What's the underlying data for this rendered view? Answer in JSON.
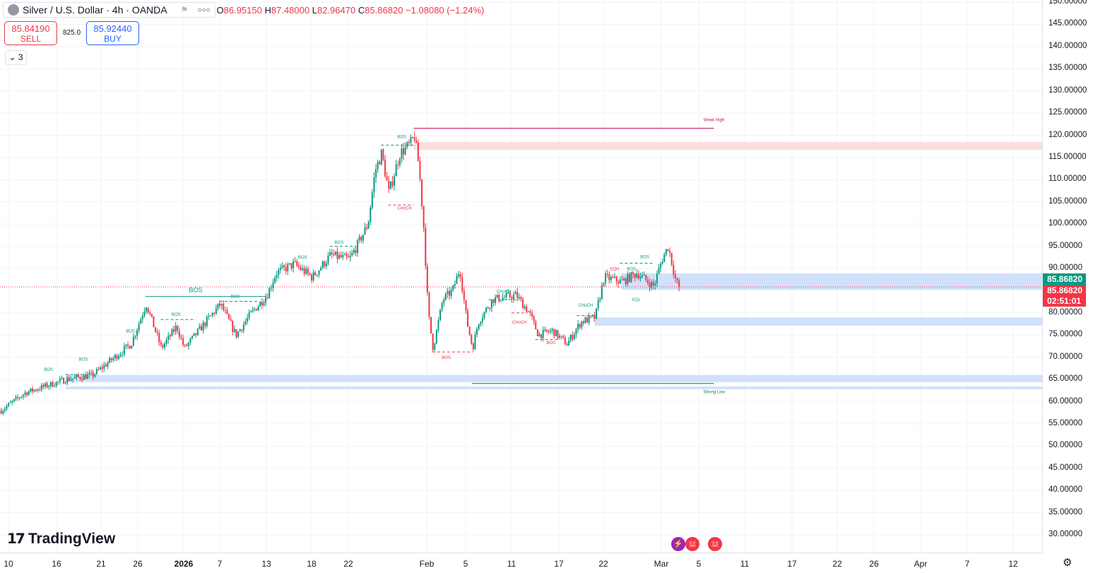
{
  "header": {
    "symbol": "Silver / U.S. Dollar · 4h · OANDA",
    "open_label": "O",
    "open": "86.95150",
    "high_label": "H",
    "high": "87.48000",
    "low_label": "L",
    "low": "82.96470",
    "close_label": "C",
    "close": "85.86820",
    "change": "−1.08080 (−1.24%)"
  },
  "trade": {
    "sell_price": "85.84190",
    "sell_label": "SELL",
    "spread": "825.0",
    "buy_price": "85.92440",
    "buy_label": "BUY"
  },
  "indicators_toggle": "3",
  "price_labels": {
    "last": "85.86820",
    "bid": "85.86820",
    "countdown": "02:51:01"
  },
  "logo": "TradingView",
  "colors": {
    "up": "#089981",
    "down": "#f23645",
    "zone_blue": "#d1e0fb",
    "zone_pink": "#fbdfe0",
    "weak_high": "#c2185b",
    "strong_low": "#0b7d4a"
  },
  "chart_data": {
    "type": "candlestick",
    "yaxis_ticks": [
      "150.00000",
      "145.00000",
      "140.00000",
      "135.00000",
      "130.00000",
      "125.00000",
      "120.00000",
      "115.00000",
      "110.00000",
      "105.00000",
      "100.00000",
      "95.00000",
      "90.00000",
      "80.00000",
      "75.00000",
      "70.00000",
      "65.00000",
      "60.00000",
      "55.00000",
      "50.00000",
      "45.00000",
      "40.00000",
      "35.00000",
      "30.00000"
    ],
    "ylim": [
      30,
      150
    ],
    "xaxis_ticks": [
      "10",
      "16",
      "21",
      "26",
      "2026",
      "7",
      "13",
      "18",
      "22",
      "Feb",
      "5",
      "11",
      "17",
      "22",
      "Mar",
      "5",
      "11",
      "17",
      "22",
      "26",
      "Apr",
      "7",
      "12"
    ],
    "close_path": [
      [
        "2025-12-09",
        58
      ],
      [
        "2025-12-12",
        62
      ],
      [
        "2025-12-17",
        65
      ],
      [
        "2025-12-20",
        66
      ],
      [
        "2025-12-22",
        69
      ],
      [
        "2025-12-25",
        73
      ],
      [
        "2025-12-27",
        82
      ],
      [
        "2025-12-29",
        72
      ],
      [
        "2025-12-31",
        77
      ],
      [
        "2026-01-01",
        72
      ],
      [
        "2026-01-04",
        77
      ],
      [
        "2026-01-07",
        82
      ],
      [
        "2026-01-09",
        75
      ],
      [
        "2026-01-11",
        80
      ],
      [
        "2026-01-13",
        84
      ],
      [
        "2026-01-14",
        89
      ],
      [
        "2026-01-16",
        91
      ],
      [
        "2026-01-18",
        88
      ],
      [
        "2026-01-20",
        93
      ],
      [
        "2026-01-22",
        92
      ],
      [
        "2026-01-23",
        95
      ],
      [
        "2026-01-24 10:00",
        100
      ],
      [
        "2026-01-25 08:00",
        112
      ],
      [
        "2026-01-26 04:00",
        116
      ],
      [
        "2026-01-27 02:00",
        107
      ],
      [
        "2026-01-28 12:00",
        116
      ],
      [
        "2026-01-29 20:00",
        118
      ],
      [
        "2026-01-30 08:00",
        120
      ],
      [
        "2026-01-30 22:00",
        113
      ],
      [
        "2026-01-31 12:00",
        100
      ],
      [
        "2026-02-01 02:00",
        80
      ],
      [
        "2026-02-01 14:00",
        72
      ],
      [
        "2026-02-02 14:00",
        83
      ],
      [
        "2026-02-03 14:00",
        85
      ],
      [
        "2026-02-04 08:00",
        90
      ],
      [
        "2026-02-05 02:00",
        78
      ],
      [
        "2026-02-05 20:00",
        72
      ],
      [
        "2026-02-06 14:00",
        78
      ],
      [
        "2026-02-08 10:00",
        83
      ],
      [
        "2026-02-11 12:00",
        84
      ],
      [
        "2026-02-13 04:00",
        80
      ],
      [
        "2026-02-14 08:00",
        75
      ],
      [
        "2026-02-16 02:00",
        76
      ],
      [
        "2026-02-17 20:00",
        73
      ],
      [
        "2026-02-19 10:00",
        78
      ],
      [
        "2026-02-21",
        79
      ],
      [
        "2026-02-22",
        88
      ],
      [
        "2026-02-24 04:00",
        87
      ],
      [
        "2026-02-26",
        89
      ],
      [
        "2026-02-28",
        86
      ],
      [
        "2026-03-01",
        92
      ],
      [
        "2026-03-01 16:00",
        95
      ],
      [
        "2026-03-02 12:00",
        87
      ],
      [
        "2026-03-02 20:00",
        85.8682
      ]
    ],
    "zones": [
      {
        "color": "pink",
        "from_date": "2026-01-30 08:00",
        "top": 118.5,
        "bottom": 116.7
      },
      {
        "color": "blue",
        "from_date": "2026-02-24 04:00",
        "top": 88.9,
        "bottom": 85.2
      },
      {
        "color": "blue",
        "from_date": "2026-02-21",
        "top": 79.0,
        "bottom": 77.1
      },
      {
        "color": "blue",
        "from_date": "2025-12-17",
        "top": 66.0,
        "bottom": 64.4
      },
      {
        "color": "blue",
        "from_date": "2025-12-17",
        "top": 63.4,
        "bottom": 62.8
      }
    ],
    "levels": [
      {
        "label": "Weak High",
        "price": 121.6,
        "from": "2026-01-30 08:00",
        "to": "2026-03-07",
        "color": "weak_high"
      },
      {
        "label": "Strong Low",
        "price": 64.1,
        "from": "2026-02-05 20:00",
        "to": "2026-03-07",
        "color": "strong_low"
      }
    ],
    "structure_labels": [
      {
        "text": "BOS",
        "date": "2025-12-15",
        "price": 66.9,
        "color": "up"
      },
      {
        "text": "BOS",
        "date": "2025-12-19",
        "price": 69.2,
        "color": "up"
      },
      {
        "text": "BOS",
        "date": "2025-12-25",
        "price": 75.6,
        "color": "up"
      },
      {
        "text": "BOS",
        "date": "2025-12-31",
        "price": 79.3,
        "color": "up"
      },
      {
        "text": "BOS",
        "date": "2026-01-03",
        "price": 84.7,
        "color": "up",
        "big": true
      },
      {
        "text": "BOS",
        "date": "2026-01-09",
        "price": 83.4,
        "color": "up"
      },
      {
        "text": "BOS",
        "date": "2026-01-17",
        "price": 92.2,
        "color": "up"
      },
      {
        "text": "BOS",
        "date": "2026-01-21",
        "price": 95.6,
        "color": "up"
      },
      {
        "text": "BOS",
        "date": "2026-01-28 20:00",
        "price": 119.4,
        "color": "up"
      },
      {
        "text": "CHoCH",
        "date": "2026-01-29 04:00",
        "price": 103.3,
        "color": "down"
      },
      {
        "text": "BOS",
        "date": "2026-02-03",
        "price": 69.6,
        "color": "down"
      },
      {
        "text": "CHoCH",
        "date": "2026-02-10",
        "price": 84.5,
        "color": "up"
      },
      {
        "text": "CHoCH",
        "date": "2026-02-12",
        "price": 77.6,
        "color": "down"
      },
      {
        "text": "BOS",
        "date": "2026-02-16",
        "price": 73.0,
        "color": "down"
      },
      {
        "text": "CHoCH",
        "date": "2026-02-20",
        "price": 81.4,
        "color": "up"
      },
      {
        "text": "EQH",
        "date": "2026-02-24",
        "price": 89.6,
        "color": "down"
      },
      {
        "text": "BOS",
        "date": "2026-02-24 18:00",
        "price": 89.6,
        "color": "up"
      },
      {
        "text": "BOS",
        "date": "2026-02-27",
        "price": 92.3,
        "color": "up"
      },
      {
        "text": "EQL",
        "date": "2026-02-26",
        "price": 82.7,
        "color": "up"
      }
    ],
    "structure_lines": [
      {
        "from": "2025-12-17",
        "to": "2025-12-20",
        "price": 66.1,
        "color": "up",
        "dashed": true
      },
      {
        "from": "2025-12-27",
        "to": "2026-01-13",
        "price": 83.7,
        "color": "up",
        "dashed": false
      },
      {
        "from": "2025-12-29",
        "to": "2026-01-03",
        "price": 78.5,
        "color": "up",
        "dashed": true
      },
      {
        "from": "2026-01-07",
        "to": "2026-01-12",
        "price": 82.6,
        "color": "up",
        "dashed": true
      },
      {
        "from": "2026-01-20",
        "to": "2026-01-23",
        "price": 95.0,
        "color": "up",
        "dashed": true
      },
      {
        "from": "2026-01-26 04:00",
        "to": "2026-01-30 08:00",
        "price": 117.8,
        "color": "up",
        "dashed": true
      },
      {
        "from": "2026-01-27 02:00",
        "to": "2026-01-30 08:00",
        "price": 104.3,
        "color": "down",
        "dashed": true
      },
      {
        "from": "2026-02-01 14:00",
        "to": "2026-02-06",
        "price": 71.2,
        "color": "down",
        "dashed": true
      },
      {
        "from": "2026-02-08",
        "to": "2026-02-12",
        "price": 83.0,
        "color": "up",
        "dashed": true
      },
      {
        "from": "2026-02-11",
        "to": "2026-02-13",
        "price": 80.0,
        "color": "down",
        "dashed": true
      },
      {
        "from": "2026-02-14",
        "to": "2026-02-17",
        "price": 74.0,
        "color": "down",
        "dashed": true
      },
      {
        "from": "2026-02-19",
        "to": "2026-02-21",
        "price": 79.4,
        "color": "up",
        "dashed": true
      },
      {
        "from": "2026-02-24",
        "to": "2026-02-28",
        "price": 91.2,
        "color": "up",
        "dashed": true
      }
    ]
  }
}
